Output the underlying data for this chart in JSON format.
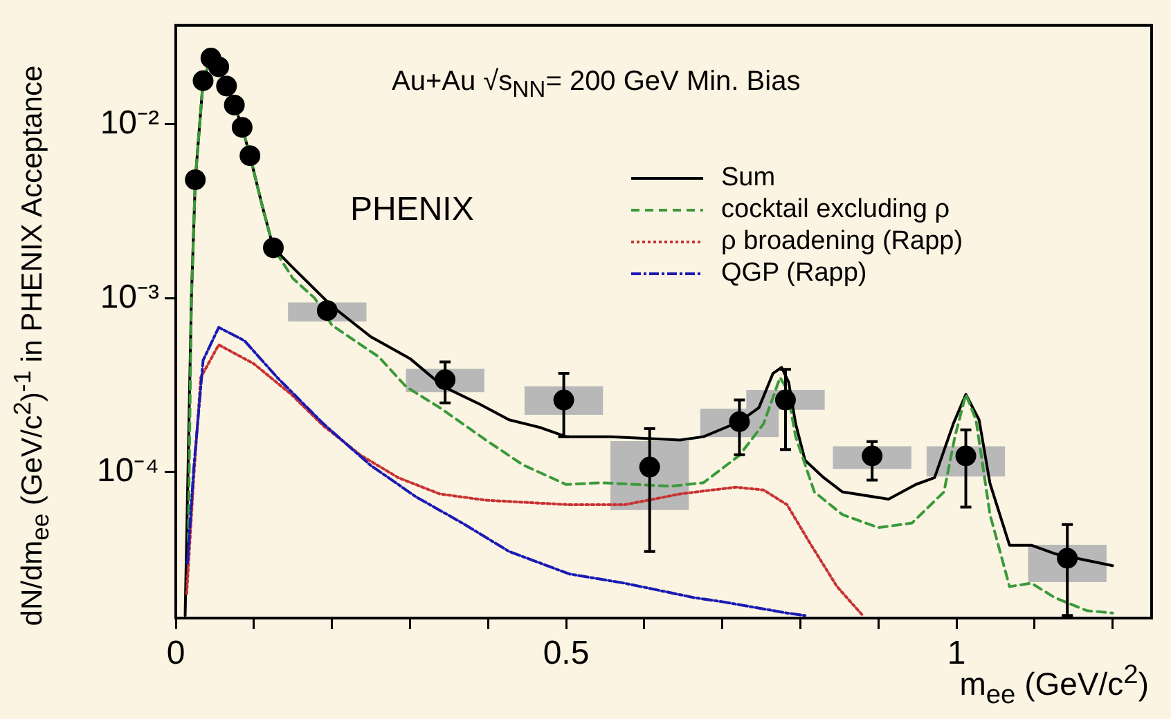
{
  "chart_data": {
    "type": "line",
    "xlabel": "m$_{ee}$ (GeV/c$^{2}$)",
    "ylabel": "dN/dm$_{ee}$ (GeV/c$^{2}$)$^{-1}$ in PHENIX Acceptance",
    "annotations": [
      "Au+Au √s$_{NN}$= 200 GeV Min. Bias",
      "PHENIX"
    ],
    "xlim": [
      0,
      1.25
    ],
    "xticks": [
      0,
      {
        "value": 0.1,
        "label": null
      },
      {
        "value": 0.2,
        "label": null
      },
      {
        "value": 0.3,
        "label": null
      },
      {
        "value": 0.4,
        "label": null
      },
      0.5,
      {
        "value": 0.6,
        "label": null
      },
      {
        "value": 0.7,
        "label": null
      },
      {
        "value": 0.8,
        "label": null
      },
      {
        "value": 0.9,
        "label": null
      },
      1,
      {
        "value": 1.1,
        "label": null
      },
      {
        "value": 1.2,
        "label": null
      }
    ],
    "ylim": [
      1.45e-05,
      0.037
    ],
    "yticks": [
      {
        "value": 0.0001,
        "label": "10⁻⁴"
      },
      {
        "value": 0.001,
        "label": "10⁻³"
      },
      {
        "value": 0.01,
        "label": "10⁻²"
      }
    ],
    "log": "y",
    "grid": false,
    "legend": "top right",
    "series": [
      {
        "type": "bar",
        "color": "#b8b8b8",
        "x": [
          0.194,
          0.345,
          0.497,
          0.607,
          0.722,
          0.781,
          0.892,
          1.012,
          1.142
        ],
        "base": [
          0.00074,
          0.00029,
          0.000215,
          6.1e-05,
          0.00016,
          0.00023,
          0.000105,
          9.5e-05,
          2.35e-05
        ],
        "values": [
          0.0002,
          0.0001,
          9.5e-05,
          8.9e-05,
          7e-05,
          6.5e-05,
          3.5e-05,
          4.5e-05,
          1.45e-05
        ]
      },
      {
        "name": "Sum",
        "color": "#000000",
        "line_style": "solid",
        "x": [
          0.012,
          0.02,
          0.025,
          0.035,
          0.045,
          0.055,
          0.065,
          0.075,
          0.085,
          0.095,
          0.11,
          0.125,
          0.15,
          0.2,
          0.25,
          0.3,
          0.343,
          0.39,
          0.427,
          0.468,
          0.5,
          0.557,
          0.646,
          0.676,
          0.722,
          0.747,
          0.765,
          0.776,
          0.785,
          0.794,
          0.806,
          0.83,
          0.854,
          0.913,
          0.948,
          0.972,
          0.996,
          1.012,
          1.029,
          1.043,
          1.068,
          1.096,
          1.126,
          1.2
        ],
        "values": [
          1.5e-05,
          0.001,
          0.0048,
          0.0178,
          0.024,
          0.021,
          0.0166,
          0.0129,
          0.0096,
          0.0066,
          0.0035,
          0.00195,
          0.0015,
          0.0009,
          0.0006,
          0.00045,
          0.00031,
          0.000245,
          0.0002,
          0.00018,
          0.00016,
          0.00016,
          0.000153,
          0.00016,
          0.000195,
          0.000235,
          0.00037,
          0.0004,
          0.00033,
          0.00019,
          0.000117,
          9.3e-05,
          7.7e-05,
          7e-05,
          8.5e-05,
          9.3e-05,
          0.00019,
          0.00028,
          0.0002,
          8.6e-05,
          3.8e-05,
          3.8e-05,
          3.4e-05,
          2.9e-05
        ]
      },
      {
        "name": "cocktail excluding ρ",
        "color": "#3a9a3a",
        "line_style": "dashed",
        "x": [
          0.016,
          0.02,
          0.025,
          0.035,
          0.045,
          0.055,
          0.065,
          0.075,
          0.085,
          0.095,
          0.11,
          0.125,
          0.15,
          0.178,
          0.2,
          0.26,
          0.295,
          0.338,
          0.4,
          0.445,
          0.5,
          0.545,
          0.634,
          0.676,
          0.722,
          0.753,
          0.774,
          0.783,
          0.794,
          0.818,
          0.854,
          0.9,
          0.943,
          0.984,
          0.998,
          1.012,
          1.025,
          1.043,
          1.068,
          1.096,
          1.126,
          1.167,
          1.2
        ],
        "values": [
          4e-05,
          0.001,
          0.0048,
          0.0178,
          0.024,
          0.021,
          0.0166,
          0.0129,
          0.0096,
          0.0066,
          0.0035,
          0.00195,
          0.0013,
          0.001,
          0.0007,
          0.00046,
          0.00031,
          0.000235,
          0.00015,
          0.00011,
          8.5e-05,
          8.7e-05,
          8.3e-05,
          8.7e-05,
          0.000125,
          0.00019,
          0.00035,
          0.0003,
          0.00016,
          7.7e-05,
          5.7e-05,
          4.8e-05,
          5.1e-05,
          7.7e-05,
          0.00016,
          0.00028,
          0.0002,
          5.7e-05,
          2.2e-05,
          2.3e-05,
          1.9e-05,
          1.6e-05,
          1.55e-05
        ]
      },
      {
        "name": "ρ broadening (Rapp)",
        "color": "#c83232",
        "line_style": "dotted",
        "x": [
          0.014,
          0.023,
          0.032,
          0.055,
          0.1,
          0.148,
          0.189,
          0.237,
          0.285,
          0.338,
          0.397,
          0.504,
          0.575,
          0.646,
          0.717,
          0.753,
          0.783,
          0.811,
          0.847,
          0.88
        ],
        "values": [
          2e-05,
          9.3e-05,
          0.00035,
          0.00054,
          0.00042,
          0.00028,
          0.000185,
          0.000125,
          9.3e-05,
          7.5e-05,
          6.9e-05,
          6.5e-05,
          6.5e-05,
          7.5e-05,
          8.2e-05,
          7.9e-05,
          6.5e-05,
          4e-05,
          2.2e-05,
          1.5e-05
        ]
      },
      {
        "name": "QGP (Rapp)",
        "color": "#1a1ab4",
        "line_style": "dashdot",
        "x": [
          0.015,
          0.023,
          0.035,
          0.055,
          0.088,
          0.13,
          0.189,
          0.249,
          0.308,
          0.367,
          0.427,
          0.504,
          0.575,
          0.664,
          0.7,
          0.783,
          0.806
        ],
        "values": [
          3e-05,
          0.000105,
          0.00044,
          0.00068,
          0.00057,
          0.00035,
          0.00019,
          0.00011,
          7.2e-05,
          5.1e-05,
          3.5e-05,
          2.6e-05,
          2.3e-05,
          1.9e-05,
          1.8e-05,
          1.55e-05,
          1.5e-05
        ]
      },
      {
        "type": "scatter",
        "color": "#000000",
        "marker": "circle",
        "x": [
          0.025,
          0.035,
          0.045,
          0.055,
          0.065,
          0.075,
          0.085,
          0.095,
          0.125,
          0.194,
          0.345,
          0.497,
          0.607,
          0.722,
          0.781,
          0.892,
          1.012,
          1.142
        ],
        "values": [
          0.0048,
          0.0178,
          0.024,
          0.0214,
          0.0166,
          0.0129,
          0.0096,
          0.0066,
          0.00195,
          0.00085,
          0.00034,
          0.00026,
          0.000107,
          0.000195,
          0.00026,
          0.000124,
          0.000124,
          3.2e-05
        ],
        "errors": [
          null,
          null,
          null,
          null,
          null,
          null,
          null,
          null,
          null,
          null,
          [
            0.00025,
            0.00043
          ],
          [
            0.00016,
            0.00037
          ],
          [
            3.5e-05,
            0.000178
          ],
          [
            0.000126,
            0.00026
          ],
          [
            0.000135,
            0.00039
          ],
          [
            9e-05,
            0.00015
          ],
          [
            6.3e-05,
            0.000175
          ],
          [
            1.5e-05,
            5e-05
          ]
        ]
      }
    ]
  }
}
